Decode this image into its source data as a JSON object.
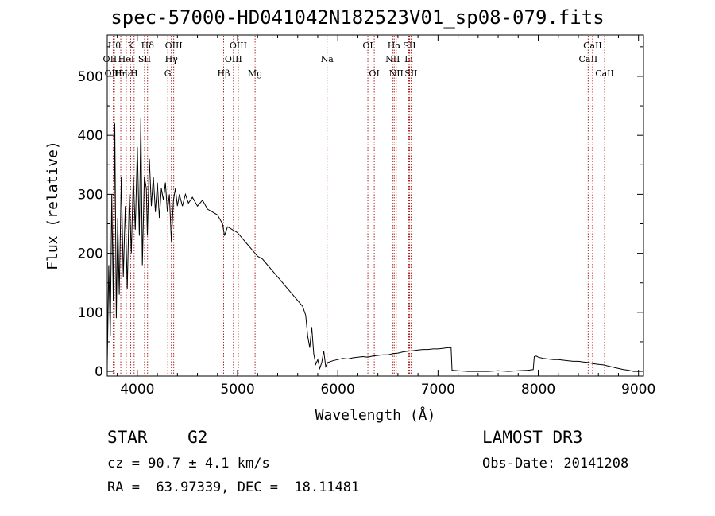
{
  "chart_data": {
    "type": "line",
    "title": "spec-57000-HD041042N182523V01_sp08-079.fits",
    "xlabel": "Wavelength (Å)",
    "ylabel": "Flux (relative)",
    "xlim": [
      3700,
      9050
    ],
    "ylim": [
      -8,
      570
    ],
    "xticks": [
      4000,
      5000,
      6000,
      7000,
      8000,
      9000
    ],
    "yticks": [
      0,
      100,
      200,
      300,
      400,
      500
    ],
    "series": [
      {
        "name": "flux",
        "points": [
          [
            3700,
            10
          ],
          [
            3715,
            180
          ],
          [
            3730,
            60
          ],
          [
            3745,
            300
          ],
          [
            3760,
            120
          ],
          [
            3775,
            420
          ],
          [
            3790,
            90
          ],
          [
            3805,
            260
          ],
          [
            3820,
            130
          ],
          [
            3840,
            330
          ],
          [
            3860,
            160
          ],
          [
            3880,
            280
          ],
          [
            3900,
            140
          ],
          [
            3920,
            300
          ],
          [
            3940,
            200
          ],
          [
            3960,
            330
          ],
          [
            3980,
            240
          ],
          [
            4000,
            380
          ],
          [
            4020,
            230
          ],
          [
            4035,
            430
          ],
          [
            4050,
            180
          ],
          [
            4070,
            330
          ],
          [
            4090,
            310
          ],
          [
            4100,
            230
          ],
          [
            4120,
            360
          ],
          [
            4140,
            280
          ],
          [
            4160,
            330
          ],
          [
            4180,
            270
          ],
          [
            4200,
            320
          ],
          [
            4220,
            260
          ],
          [
            4240,
            310
          ],
          [
            4260,
            290
          ],
          [
            4280,
            320
          ],
          [
            4300,
            270
          ],
          [
            4320,
            300
          ],
          [
            4340,
            220
          ],
          [
            4360,
            290
          ],
          [
            4380,
            310
          ],
          [
            4400,
            280
          ],
          [
            4420,
            300
          ],
          [
            4450,
            280
          ],
          [
            4480,
            300
          ],
          [
            4510,
            285
          ],
          [
            4550,
            295
          ],
          [
            4600,
            280
          ],
          [
            4650,
            290
          ],
          [
            4700,
            275
          ],
          [
            4750,
            270
          ],
          [
            4800,
            265
          ],
          [
            4850,
            250
          ],
          [
            4870,
            230
          ],
          [
            4900,
            245
          ],
          [
            4950,
            240
          ],
          [
            5000,
            235
          ],
          [
            5050,
            225
          ],
          [
            5100,
            215
          ],
          [
            5150,
            205
          ],
          [
            5200,
            195
          ],
          [
            5250,
            190
          ],
          [
            5300,
            180
          ],
          [
            5350,
            170
          ],
          [
            5400,
            160
          ],
          [
            5450,
            150
          ],
          [
            5500,
            140
          ],
          [
            5550,
            130
          ],
          [
            5600,
            120
          ],
          [
            5650,
            110
          ],
          [
            5680,
            95
          ],
          [
            5700,
            60
          ],
          [
            5720,
            40
          ],
          [
            5740,
            75
          ],
          [
            5760,
            30
          ],
          [
            5780,
            12
          ],
          [
            5800,
            20
          ],
          [
            5820,
            5
          ],
          [
            5840,
            15
          ],
          [
            5860,
            35
          ],
          [
            5880,
            8
          ],
          [
            5900,
            15
          ],
          [
            5950,
            18
          ],
          [
            6000,
            20
          ],
          [
            6050,
            22
          ],
          [
            6100,
            21
          ],
          [
            6150,
            23
          ],
          [
            6200,
            24
          ],
          [
            6250,
            25
          ],
          [
            6300,
            24
          ],
          [
            6350,
            26
          ],
          [
            6400,
            27
          ],
          [
            6450,
            28
          ],
          [
            6500,
            28
          ],
          [
            6550,
            30
          ],
          [
            6600,
            31
          ],
          [
            6650,
            33
          ],
          [
            6700,
            34
          ],
          [
            6750,
            35
          ],
          [
            6800,
            36
          ],
          [
            6850,
            37
          ],
          [
            6900,
            37
          ],
          [
            6950,
            38
          ],
          [
            7000,
            38
          ],
          [
            7050,
            39
          ],
          [
            7100,
            40
          ],
          [
            7130,
            40
          ],
          [
            7140,
            2
          ],
          [
            7200,
            1
          ],
          [
            7300,
            0
          ],
          [
            7400,
            0
          ],
          [
            7500,
            0
          ],
          [
            7600,
            1
          ],
          [
            7700,
            0
          ],
          [
            7800,
            1
          ],
          [
            7900,
            2
          ],
          [
            7950,
            3
          ],
          [
            7960,
            25
          ],
          [
            7980,
            26
          ],
          [
            8000,
            24
          ],
          [
            8050,
            22
          ],
          [
            8100,
            21
          ],
          [
            8150,
            20
          ],
          [
            8200,
            20
          ],
          [
            8250,
            19
          ],
          [
            8300,
            18
          ],
          [
            8350,
            17
          ],
          [
            8400,
            17
          ],
          [
            8450,
            16
          ],
          [
            8500,
            15
          ],
          [
            8550,
            13
          ],
          [
            8600,
            12
          ],
          [
            8650,
            11
          ],
          [
            8700,
            9
          ],
          [
            8750,
            7
          ],
          [
            8800,
            5
          ],
          [
            8850,
            3
          ],
          [
            8900,
            2
          ],
          [
            8950,
            0
          ],
          [
            9000,
            0
          ]
        ]
      }
    ],
    "lines": [
      {
        "label": "OII",
        "wl": 3727,
        "row": 1
      },
      {
        "label": "OIII",
        "wl": 3760,
        "row": 2
      },
      {
        "label": "Hθ",
        "wl": 3771,
        "row": 0
      },
      {
        "label": "Hη",
        "wl": 3835,
        "row": 2
      },
      {
        "label": "HeI",
        "wl": 3889,
        "row": 1
      },
      {
        "label": "Hε",
        "wl": 3889,
        "row": 2
      },
      {
        "label": "K",
        "wl": 3934,
        "row": 0
      },
      {
        "label": "H",
        "wl": 3968,
        "row": 2
      },
      {
        "label": "SII",
        "wl": 4072,
        "row": 1
      },
      {
        "label": "Hδ",
        "wl": 4102,
        "row": 0
      },
      {
        "label": "OIII",
        "wl": 4363,
        "row": 0
      },
      {
        "label": "Hγ",
        "wl": 4340,
        "row": 1
      },
      {
        "label": "G",
        "wl": 4304,
        "row": 2
      },
      {
        "label": "Hβ",
        "wl": 4861,
        "row": 2
      },
      {
        "label": "OIII",
        "wl": 4959,
        "row": 1
      },
      {
        "label": "OIII",
        "wl": 5007,
        "row": 0
      },
      {
        "label": "Mg",
        "wl": 5175,
        "row": 2
      },
      {
        "label": "Na",
        "wl": 5893,
        "row": 1
      },
      {
        "label": "OI",
        "wl": 6300,
        "row": 0
      },
      {
        "label": "OI",
        "wl": 6364,
        "row": 2
      },
      {
        "label": "NII",
        "wl": 6548,
        "row": 1
      },
      {
        "label": "Hα",
        "wl": 6563,
        "row": 0
      },
      {
        "label": "NII",
        "wl": 6583,
        "row": 2
      },
      {
        "label": "Li",
        "wl": 6708,
        "row": 1
      },
      {
        "label": "SII",
        "wl": 6716,
        "row": 0
      },
      {
        "label": "SII",
        "wl": 6731,
        "row": 2
      },
      {
        "label": "CaII",
        "wl": 8498,
        "row": 1
      },
      {
        "label": "CaII",
        "wl": 8542,
        "row": 0
      },
      {
        "label": "CaII",
        "wl": 8662,
        "row": 2
      }
    ]
  },
  "info": {
    "object": "STAR    G2",
    "survey": "LAMOST DR3",
    "cz": "cz = 90.7 ± 4.1 km/s",
    "obs_date": "Obs-Date: 20141208",
    "coords": "RA =  63.97339, DEC =  18.11481"
  }
}
